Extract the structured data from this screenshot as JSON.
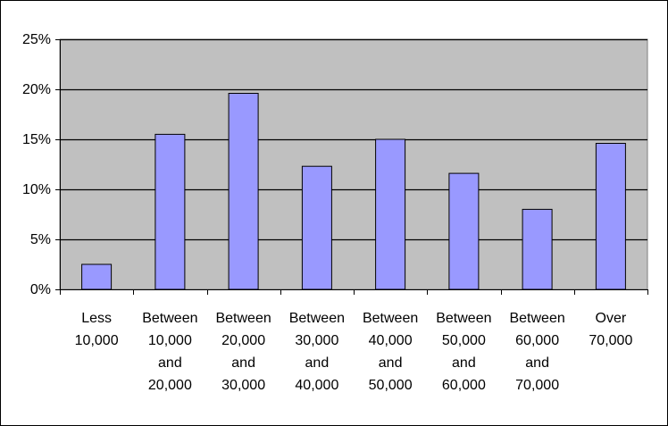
{
  "chart_data": {
    "type": "bar",
    "title": "",
    "xlabel": "",
    "ylabel": "",
    "categories": [
      [
        "Less",
        "10,000"
      ],
      [
        "Between",
        "10,000",
        "and",
        "20,000"
      ],
      [
        "Between",
        "20,000",
        "and",
        "30,000"
      ],
      [
        "Between",
        "30,000",
        "and",
        "40,000"
      ],
      [
        "Between",
        "40,000",
        "and",
        "50,000"
      ],
      [
        "Between",
        "50,000",
        "and",
        "60,000"
      ],
      [
        "Between",
        "60,000",
        "and",
        "70,000"
      ],
      [
        "Over",
        "70,000"
      ]
    ],
    "values": [
      0.025,
      0.155,
      0.196,
      0.123,
      0.15,
      0.116,
      0.08,
      0.146
    ],
    "ylim": [
      0,
      0.25
    ],
    "yticks": [
      0,
      0.05,
      0.1,
      0.15,
      0.2,
      0.25
    ],
    "ytick_labels": [
      "0%",
      "5%",
      "10%",
      "15%",
      "20%",
      "25%"
    ],
    "grid": true,
    "legend": "none",
    "colors": {
      "plot_background": "#c0c0c0",
      "bar_fill": "#9999ff",
      "bar_stroke": "#000000",
      "gridline": "#000000"
    }
  }
}
